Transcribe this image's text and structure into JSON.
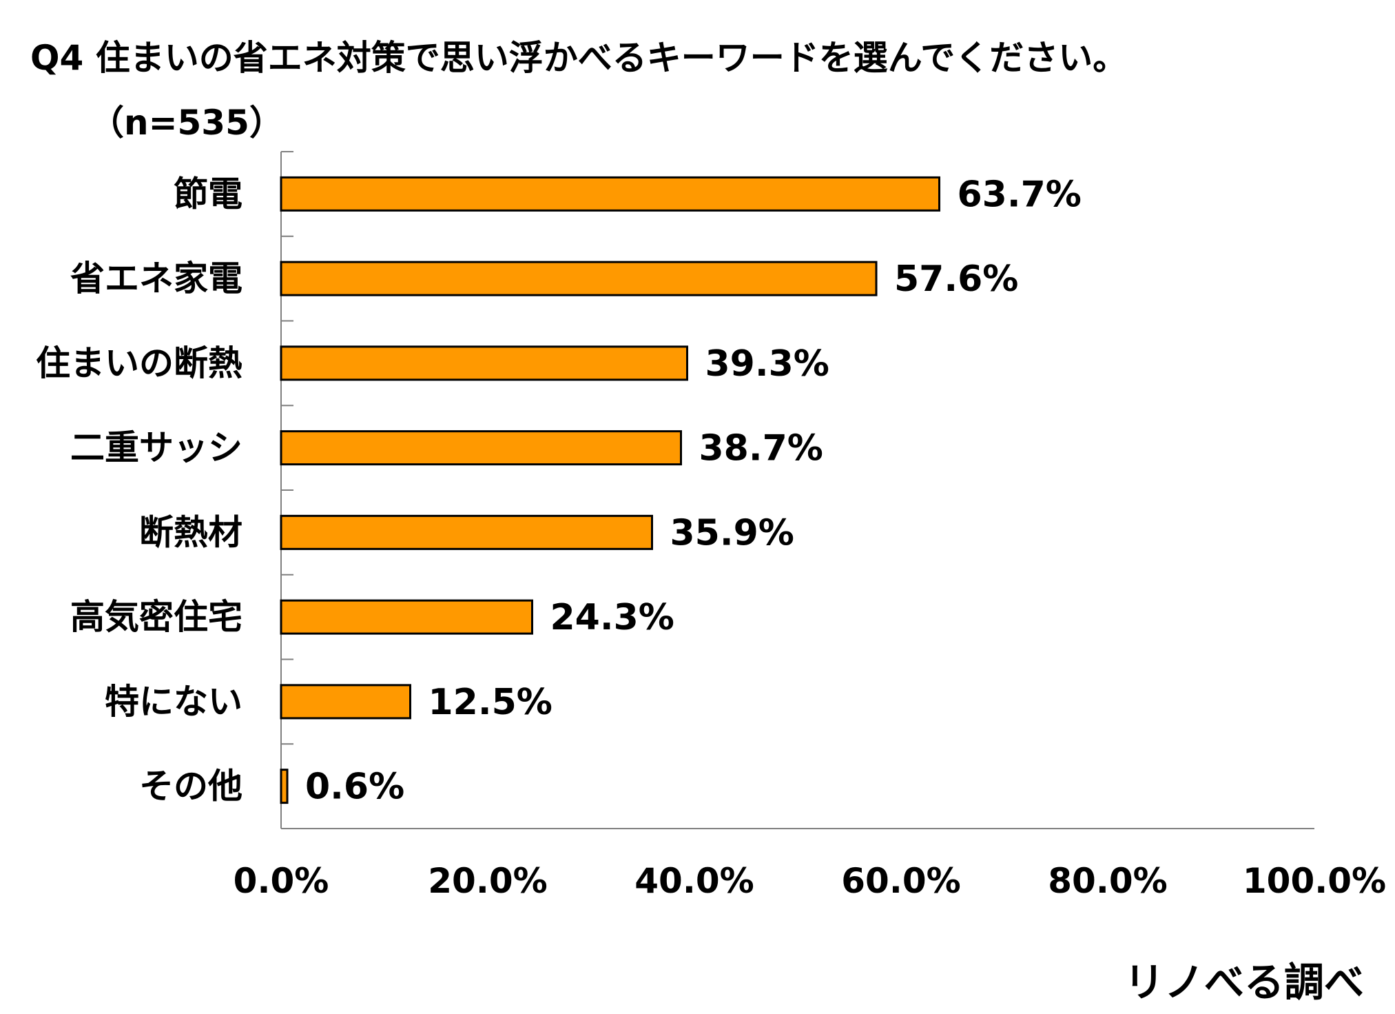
{
  "title": "Q4 住まいの省エネ対策で思い浮かべるキーワードを選んでください。",
  "subtitle": "（n=535）",
  "source": "リノべる調べ",
  "colors": {
    "bar_fill": "#FF9900",
    "bar_stroke": "#000000",
    "axis": "#7f7f7f"
  },
  "chart_data": {
    "type": "bar",
    "orientation": "horizontal",
    "categories": [
      "節電",
      "省エネ家電",
      "住まいの断熱",
      "二重サッシ",
      "断熱材",
      "高気密住宅",
      "特にない",
      "その他"
    ],
    "values": [
      63.7,
      57.6,
      39.3,
      38.7,
      35.9,
      24.3,
      12.5,
      0.6
    ],
    "value_labels": [
      "63.7%",
      "57.6%",
      "39.3%",
      "38.7%",
      "35.9%",
      "24.3%",
      "12.5%",
      "0.6%"
    ],
    "xlim": [
      0,
      100
    ],
    "x_ticks": [
      0,
      20,
      40,
      60,
      80,
      100
    ],
    "x_tick_labels": [
      "0.0%",
      "20.0%",
      "40.0%",
      "60.0%",
      "80.0%",
      "100.0%"
    ],
    "grid": false,
    "legend": "none"
  }
}
